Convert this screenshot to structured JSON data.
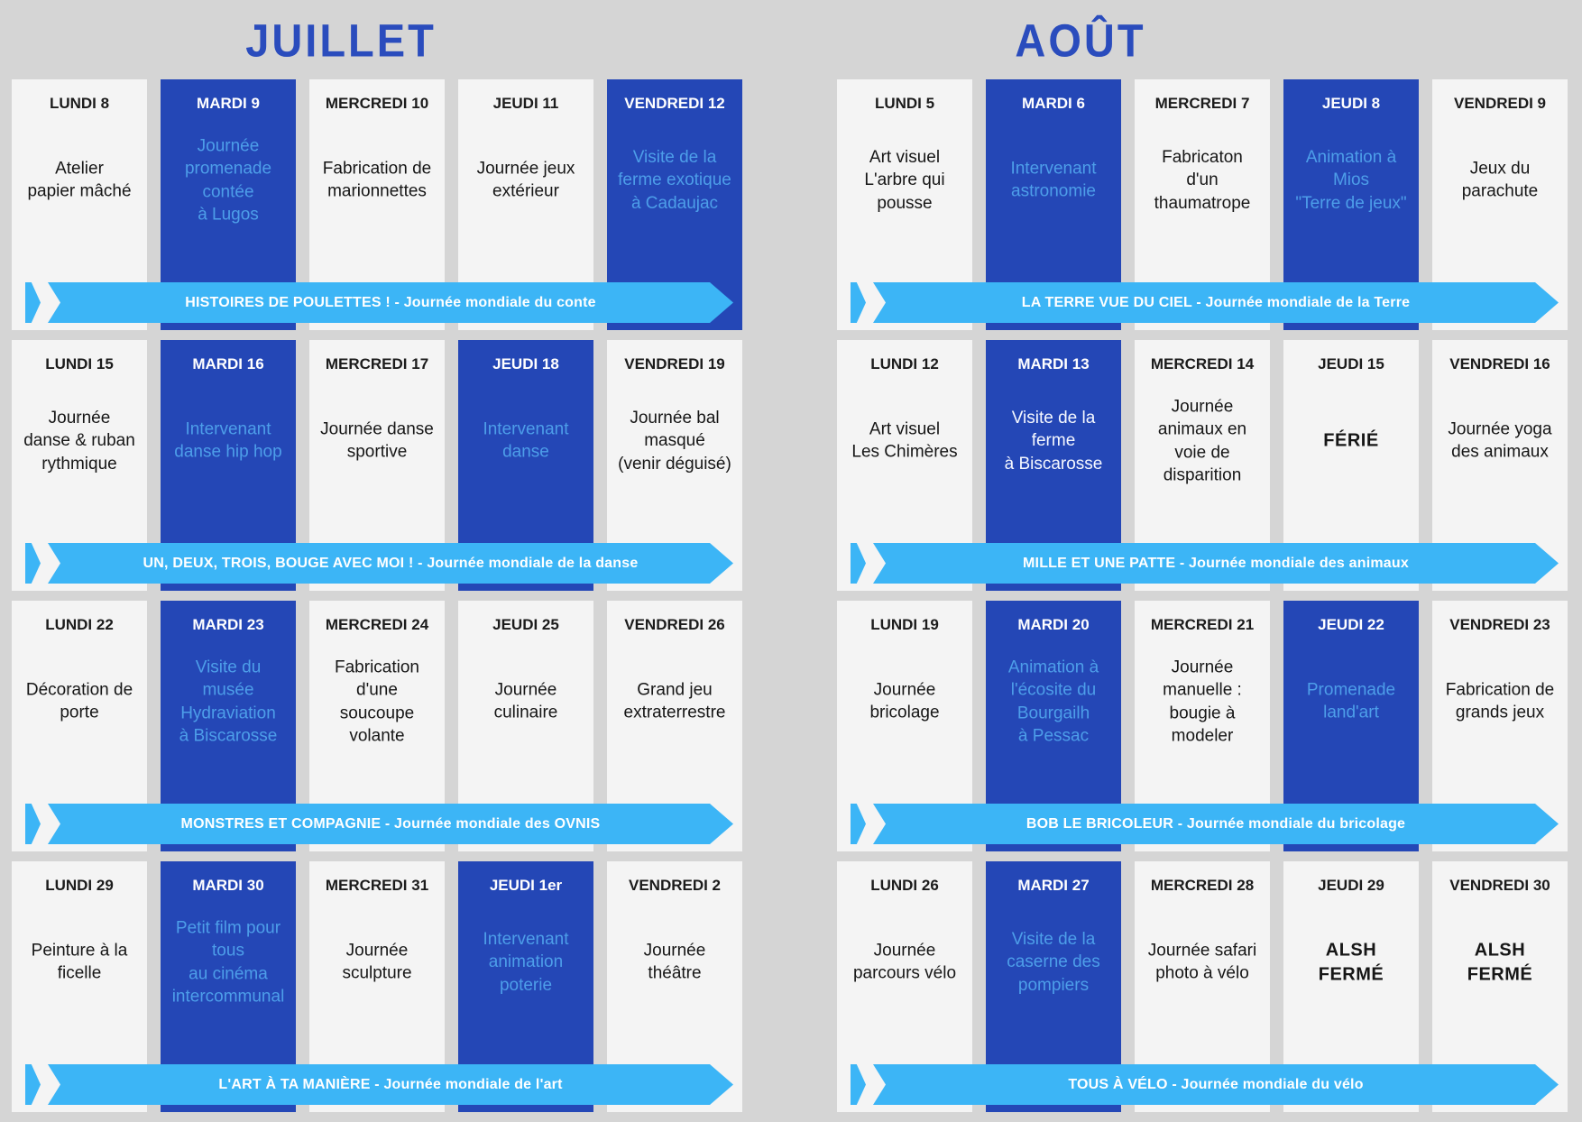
{
  "colors": {
    "page_background": "#d5d5d5",
    "light_card": "#f4f4f4",
    "dark_card": "#2447b6",
    "dark_card_body_text": "#4d9ee9",
    "banner": "#3cb5f6",
    "banner_text": "#ffffff",
    "month_title": "#2a4cbd"
  },
  "months": [
    {
      "title": "JUILLET",
      "weeks": [
        {
          "banner": "HISTOIRES DE POULETTES ! - Journée mondiale du conte",
          "days": [
            {
              "header": "LUNDI 8",
              "body": "Atelier\npapier mâché",
              "dark": false,
              "bold": false,
              "white": false
            },
            {
              "header": "MARDI 9",
              "body": "Journée\npromenade\ncontée\nà Lugos",
              "dark": true,
              "bold": false,
              "white": false
            },
            {
              "header": "MERCREDI 10",
              "body": "Fabrication de\nmarionnettes",
              "dark": false,
              "bold": false,
              "white": false
            },
            {
              "header": "JEUDI 11",
              "body": "Journée jeux\nextérieur",
              "dark": false,
              "bold": false,
              "white": false
            },
            {
              "header": "VENDREDI 12",
              "body": "Visite de la\nferme exotique\nà Cadaujac",
              "dark": true,
              "bold": false,
              "white": false
            }
          ]
        },
        {
          "banner": "UN, DEUX, TROIS, BOUGE AVEC MOI ! - Journée mondiale de la danse",
          "days": [
            {
              "header": "LUNDI 15",
              "body": "Journée\ndanse & ruban\nrythmique",
              "dark": false,
              "bold": false,
              "white": false
            },
            {
              "header": "MARDI 16",
              "body": "Intervenant\ndanse hip hop",
              "dark": true,
              "bold": false,
              "white": false
            },
            {
              "header": "MERCREDI 17",
              "body": "Journée danse\nsportive",
              "dark": false,
              "bold": false,
              "white": false
            },
            {
              "header": "JEUDI 18",
              "body": "Intervenant\ndanse",
              "dark": true,
              "bold": false,
              "white": false
            },
            {
              "header": "VENDREDI 19",
              "body": "Journée bal\nmasqué\n(venir déguisé)",
              "dark": false,
              "bold": false,
              "white": false
            }
          ]
        },
        {
          "banner": "MONSTRES ET COMPAGNIE - Journée mondiale des OVNIS",
          "days": [
            {
              "header": "LUNDI 22",
              "body": "Décoration de\nporte",
              "dark": false,
              "bold": false,
              "white": false
            },
            {
              "header": "MARDI 23",
              "body": "Visite du\nmusée\nHydraviation\nà Biscarosse",
              "dark": true,
              "bold": false,
              "white": false
            },
            {
              "header": "MERCREDI 24",
              "body": "Fabrication\nd'une\nsoucoupe\nvolante",
              "dark": false,
              "bold": false,
              "white": false
            },
            {
              "header": "JEUDI 25",
              "body": "Journée\nculinaire",
              "dark": false,
              "bold": false,
              "white": false
            },
            {
              "header": "VENDREDI 26",
              "body": "Grand jeu\nextraterrestre",
              "dark": false,
              "bold": false,
              "white": false
            }
          ]
        },
        {
          "banner": "L'ART À TA MANIÈRE - Journée mondiale de l'art",
          "days": [
            {
              "header": "LUNDI 29",
              "body": "Peinture à la\nficelle",
              "dark": false,
              "bold": false,
              "white": false
            },
            {
              "header": "MARDI 30",
              "body": "Petit film pour\ntous\nau cinéma\nintercommunal",
              "dark": true,
              "bold": false,
              "white": false
            },
            {
              "header": "MERCREDI 31",
              "body": "Journée\nsculpture",
              "dark": false,
              "bold": false,
              "white": false
            },
            {
              "header": "JEUDI 1er",
              "body": "Intervenant\nanimation\npoterie",
              "dark": true,
              "bold": false,
              "white": false
            },
            {
              "header": "VENDREDI 2",
              "body": "Journée\nthéâtre",
              "dark": false,
              "bold": false,
              "white": false
            }
          ]
        }
      ]
    },
    {
      "title": "AOÛT",
      "weeks": [
        {
          "banner": "LA TERRE VUE DU CIEL - Journée mondiale de la Terre",
          "days": [
            {
              "header": "LUNDI 5",
              "body": "Art visuel\nL'arbre qui\npousse",
              "dark": false,
              "bold": false,
              "white": false
            },
            {
              "header": "MARDI 6",
              "body": "Intervenant\nastronomie",
              "dark": true,
              "bold": false,
              "white": false
            },
            {
              "header": "MERCREDI 7",
              "body": "Fabricaton\nd'un\nthaumatrope",
              "dark": false,
              "bold": false,
              "white": false
            },
            {
              "header": "JEUDI 8",
              "body": "Animation à\nMios\n\"Terre de jeux\"",
              "dark": true,
              "bold": false,
              "white": false
            },
            {
              "header": "VENDREDI 9",
              "body": "Jeux du\nparachute",
              "dark": false,
              "bold": false,
              "white": false
            }
          ]
        },
        {
          "banner": "MILLE ET UNE PATTE - Journée mondiale des animaux",
          "days": [
            {
              "header": "LUNDI 12",
              "body": "Art visuel\nLes Chimères",
              "dark": false,
              "bold": false,
              "white": false
            },
            {
              "header": "MARDI 13",
              "body": "Visite de la\nferme\nà Biscarosse",
              "dark": true,
              "bold": false,
              "white": true
            },
            {
              "header": "MERCREDI 14",
              "body": "Journée\nanimaux en\nvoie de\ndisparition",
              "dark": false,
              "bold": false,
              "white": false
            },
            {
              "header": "JEUDI 15",
              "body": "FÉRIÉ",
              "dark": false,
              "bold": true,
              "white": false
            },
            {
              "header": "VENDREDI 16",
              "body": "Journée yoga\ndes animaux",
              "dark": false,
              "bold": false,
              "white": false
            }
          ]
        },
        {
          "banner": "BOB LE BRICOLEUR - Journée mondiale du bricolage",
          "days": [
            {
              "header": "LUNDI 19",
              "body": "Journée\nbricolage",
              "dark": false,
              "bold": false,
              "white": false
            },
            {
              "header": "MARDI 20",
              "body": "Animation à\nl'écosite du\nBourgailh\nà Pessac",
              "dark": true,
              "bold": false,
              "white": false
            },
            {
              "header": "MERCREDI 21",
              "body": "Journée\nmanuelle :\nbougie à\nmodeler",
              "dark": false,
              "bold": false,
              "white": false
            },
            {
              "header": "JEUDI 22",
              "body": "Promenade\nland'art",
              "dark": true,
              "bold": false,
              "white": false
            },
            {
              "header": "VENDREDI 23",
              "body": "Fabrication de\ngrands jeux",
              "dark": false,
              "bold": false,
              "white": false
            }
          ]
        },
        {
          "banner": "TOUS À VÉLO - Journée mondiale du vélo",
          "days": [
            {
              "header": "LUNDI 26",
              "body": "Journée\nparcours vélo",
              "dark": false,
              "bold": false,
              "white": false
            },
            {
              "header": "MARDI 27",
              "body": "Visite de la\ncaserne des\npompiers",
              "dark": true,
              "bold": false,
              "white": false
            },
            {
              "header": "MERCREDI 28",
              "body": "Journée safari\nphoto à vélo",
              "dark": false,
              "bold": false,
              "white": false
            },
            {
              "header": "JEUDI 29",
              "body": "ALSH\nFERMÉ",
              "dark": false,
              "bold": true,
              "white": false
            },
            {
              "header": "VENDREDI 30",
              "body": "ALSH\nFERMÉ",
              "dark": false,
              "bold": true,
              "white": false
            }
          ]
        }
      ]
    }
  ]
}
